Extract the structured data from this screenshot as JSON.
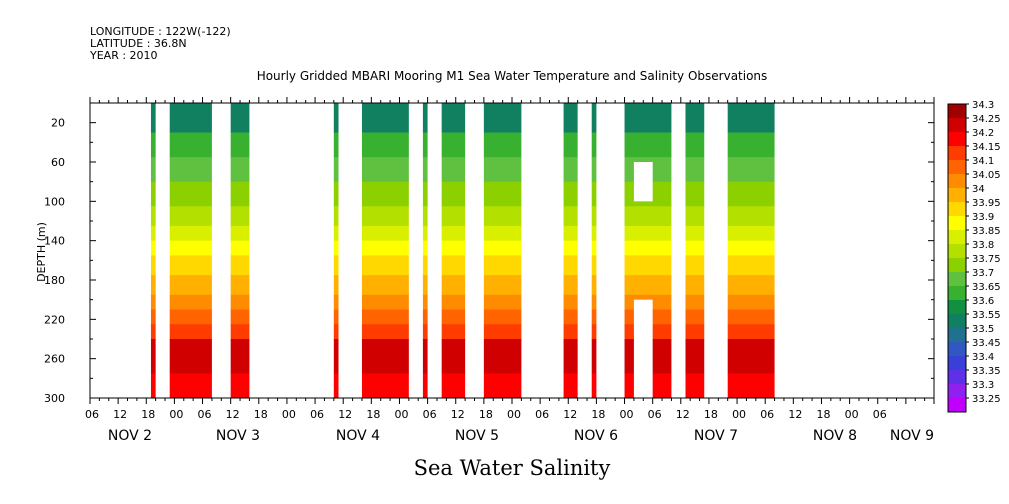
{
  "header": {
    "longitude": "LONGITUDE : 122W(-122)",
    "latitude": "LATITUDE : 36.8N",
    "year": "YEAR : 2010"
  },
  "chart_data": {
    "type": "heatmap",
    "title": "Hourly Gridded MBARI Mooring M1 Sea Water Temperature and Salinity Observations",
    "bottom_label": "Sea Water Salinity",
    "ylabel": "DEPTH (m)",
    "xlim_hours": [
      0,
      75
    ],
    "ylim": [
      300,
      0
    ],
    "x_tick_labels": [
      "06",
      "12",
      "18",
      "00",
      "06",
      "12",
      "18",
      "00",
      "06",
      "12",
      "18",
      "00",
      "06",
      "12",
      "18",
      "00",
      "06",
      "12",
      "18",
      "00",
      "06",
      "12",
      "18",
      "00",
      "06",
      "12",
      "18",
      "00",
      "06"
    ],
    "day_labels": [
      {
        "label": "NOV  2",
        "hour": 10.5
      },
      {
        "label": "NOV  3",
        "hour": 34
      },
      {
        "label": "NOV  4",
        "hour": 58
      },
      {
        "label": "NOV  5",
        "hour": 82
      },
      {
        "label": "NOV  6",
        "hour": 106
      },
      {
        "label": "NOV  7",
        "hour": 130
      },
      {
        "label": "NOV  8",
        "hour": 154
      },
      {
        "label": "NOV  9",
        "hour": 170
      }
    ],
    "y_ticks": [
      20,
      60,
      100,
      140,
      180,
      220,
      260,
      300
    ],
    "colorbar_labels": [
      "34.3",
      "34.25",
      "34.2",
      "34.15",
      "34.1",
      "34.05",
      "34",
      "33.95",
      "33.9",
      "33.85",
      "33.8",
      "33.75",
      "33.7",
      "33.65",
      "33.6",
      "33.55",
      "33.5",
      "33.45",
      "33.4",
      "33.35",
      "33.3",
      "33.25"
    ],
    "colors": [
      "#a00000",
      "#d00000",
      "#ff0000",
      "#ff3c00",
      "#ff6400",
      "#ff8c00",
      "#ffb000",
      "#ffd800",
      "#ffff00",
      "#d8f000",
      "#b4e000",
      "#8cd000",
      "#60c040",
      "#38b030",
      "#109040",
      "#108060",
      "#207090",
      "#3058c0",
      "#3840d8",
      "#6030e8",
      "#9020f0",
      "#c000ff"
    ],
    "data_segments_hours": [
      [
        13,
        14
      ],
      [
        17,
        26
      ],
      [
        30,
        34
      ],
      [
        52,
        53
      ],
      [
        58,
        68
      ],
      [
        71,
        72
      ],
      [
        75,
        80
      ],
      [
        84,
        92
      ],
      [
        101,
        104
      ],
      [
        107,
        108
      ],
      [
        114,
        124
      ],
      [
        127,
        131
      ],
      [
        136,
        146
      ]
    ],
    "gaps": [
      {
        "hours": [
          116,
          120
        ],
        "depth": [
          60,
          100
        ]
      },
      {
        "hours": [
          116,
          120
        ],
        "depth": [
          200,
          300
        ]
      }
    ]
  }
}
